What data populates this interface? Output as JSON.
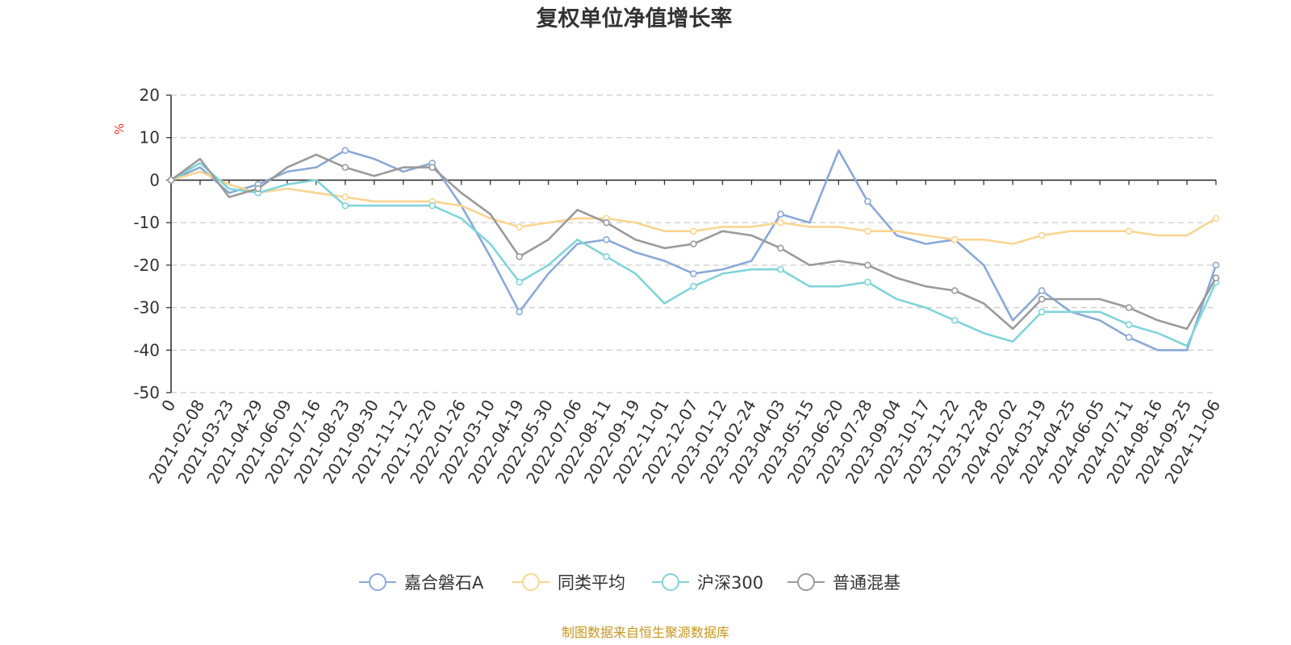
{
  "colors": {
    "axis": "#333333",
    "grid": "#cccccc",
    "ylabel": "#e8382f",
    "source": "#c8961e"
  },
  "chart_data": {
    "type": "line",
    "title": "复权单位净值增长率",
    "ylabel": "%",
    "ylim": [
      -50,
      20
    ],
    "yticks": [
      "20",
      "10",
      "0",
      "-10",
      "-20",
      "-30",
      "-40",
      "-50"
    ],
    "grid": "horizontal dashed",
    "legend_position": "bottom",
    "categories": [
      "0",
      "2021-02-08",
      "2021-03-23",
      "2021-04-29",
      "2021-06-09",
      "2021-07-16",
      "2021-08-23",
      "2021-09-30",
      "2021-11-12",
      "2021-12-20",
      "2022-01-26",
      "2022-03-10",
      "2022-04-19",
      "2022-05-30",
      "2022-07-06",
      "2022-08-11",
      "2022-09-19",
      "2022-11-01",
      "2022-12-07",
      "2023-01-12",
      "2023-02-24",
      "2023-04-03",
      "2023-05-15",
      "2023-06-20",
      "2023-07-28",
      "2023-09-04",
      "2023-10-17",
      "2023-11-22",
      "2023-12-28",
      "2024-02-02",
      "2024-03-19",
      "2024-04-25",
      "2024-06-05",
      "2024-07-11",
      "2024-08-16",
      "2024-09-25",
      "2024-11-06"
    ],
    "series": [
      {
        "name": "嘉合磐石A",
        "color": "#8aa9d6",
        "values": [
          0,
          3,
          -3,
          -1,
          2,
          3,
          7,
          5,
          2,
          4,
          -6,
          -18,
          -31,
          -22,
          -15,
          -14,
          -17,
          -19,
          -22,
          -21,
          -19,
          -8,
          -10,
          7,
          -5,
          -13,
          -15,
          -14,
          -20,
          -33,
          -26,
          -31,
          -33,
          -37,
          -40,
          -40,
          -20
        ]
      },
      {
        "name": "同类平均",
        "color": "#fbd48f",
        "values": [
          0,
          2,
          -1,
          -3,
          -2,
          -3,
          -4,
          -5,
          -5,
          -5,
          -6,
          -9,
          -11,
          -10,
          -9,
          -9,
          -10,
          -12,
          -12,
          -11,
          -11,
          -10,
          -11,
          -11,
          -12,
          -12,
          -13,
          -14,
          -14,
          -15,
          -13,
          -12,
          -12,
          -12,
          -13,
          -13,
          -9
        ]
      },
      {
        "name": "沪深300",
        "color": "#80d4d9",
        "values": [
          0,
          4,
          -2,
          -3,
          -1,
          0,
          -6,
          -6,
          -6,
          -6,
          -9,
          -15,
          -24,
          -20,
          -14,
          -18,
          -22,
          -29,
          -25,
          -22,
          -21,
          -21,
          -25,
          -25,
          -24,
          -28,
          -30,
          -33,
          -36,
          -38,
          -31,
          -31,
          -31,
          -34,
          -36,
          -39,
          -24
        ]
      },
      {
        "name": "普通混基",
        "color": "#9a9a9a",
        "values": [
          0,
          5,
          -4,
          -2,
          3,
          6,
          3,
          1,
          3,
          3,
          -3,
          -8,
          -18,
          -14,
          -7,
          -10,
          -14,
          -16,
          -15,
          -12,
          -13,
          -16,
          -20,
          -19,
          -20,
          -23,
          -25,
          -26,
          -29,
          -35,
          -28,
          -28,
          -28,
          -30,
          -33,
          -35,
          -23
        ]
      }
    ]
  },
  "legend": {
    "items": [
      "嘉合磐石A",
      "同类平均",
      "沪深300",
      "普通混基"
    ]
  },
  "source_text": "制图数据来自恒生聚源数据库"
}
